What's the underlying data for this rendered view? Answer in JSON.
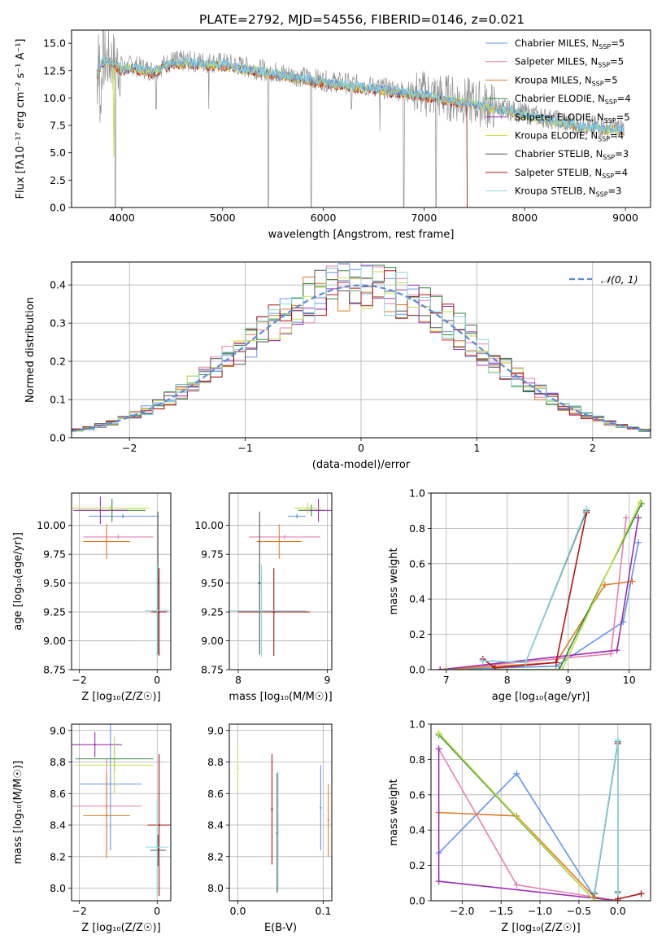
{
  "figure": {
    "title": "PLATE=2792, MJD=54556, FIBERID=0146, z=0.021"
  },
  "colors": {
    "Chabrier MILES": "#6495ed",
    "Salpeter MILES": "#e87fb5",
    "Kroupa MILES": "#e07b27",
    "Chabrier ELODIE": "#2f8c3a",
    "Salpeter ELODIE": "#9b30b5",
    "Kroupa ELODIE": "#c6e04a",
    "Chabrier STELIB": "#555555",
    "Salpeter STELIB": "#b01515",
    "Kroupa STELIB": "#86d9e0",
    "data": "#909090",
    "normal": "#5b8bd9"
  },
  "chart_data": [
    {
      "id": "spectrum",
      "type": "line",
      "title": "PLATE=2792, MJD=54556, FIBERID=0146, z=0.021",
      "xlabel": "wavelength [Angstrom, rest frame]",
      "ylabel": "Flux [fλ10⁻¹⁷ erg cm⁻² s⁻¹ A⁻¹]",
      "xlim": [
        3500,
        9250
      ],
      "ylim": [
        0,
        16.2
      ],
      "xticks": [
        "4000",
        "5000",
        "6000",
        "7000",
        "8000",
        "9000"
      ],
      "yticks": [
        "0.0",
        "2.5",
        "5.0",
        "7.5",
        "10.0",
        "12.5",
        "15.0"
      ],
      "legend_position": "top-right",
      "legend": [
        {
          "name": "Chabrier MILES",
          "nssp": "5"
        },
        {
          "name": "Salpeter MILES",
          "nssp": "5"
        },
        {
          "name": "Kroupa MILES",
          "nssp": "5"
        },
        {
          "name": "Chabrier ELODIE",
          "nssp": "4"
        },
        {
          "name": "Salpeter ELODIE",
          "nssp": "5"
        },
        {
          "name": "Kroupa ELODIE",
          "nssp": "4"
        },
        {
          "name": "Chabrier STELIB",
          "nssp": "3"
        },
        {
          "name": "Salpeter STELIB",
          "nssp": "4"
        },
        {
          "name": "Kroupa STELIB",
          "nssp": "3"
        }
      ],
      "continuum_x": [
        3750,
        3800,
        3900,
        4000,
        4100,
        4300,
        4500,
        5000,
        5500,
        6000,
        6500,
        7000,
        7500,
        8000,
        8500,
        9000
      ],
      "continuum_y": [
        12.3,
        13.5,
        13.4,
        12.7,
        13.0,
        12.5,
        13.4,
        13.2,
        12.4,
        11.6,
        11.0,
        10.4,
        9.6,
        8.6,
        7.6,
        7.2
      ],
      "dips": [
        [
          3760,
          0
        ],
        [
          3934,
          0
        ],
        [
          4340,
          9
        ],
        [
          4861,
          9
        ],
        [
          5455,
          0
        ],
        [
          5880,
          0
        ],
        [
          6280,
          9
        ],
        [
          6563,
          7
        ],
        [
          6800,
          0
        ],
        [
          7120,
          0
        ]
      ]
    },
    {
      "id": "residuals",
      "type": "bar",
      "xlabel": "(data-model)/error",
      "ylabel": "Normed distribution",
      "xlim": [
        -2.5,
        2.5
      ],
      "ylim": [
        0,
        0.46
      ],
      "xticks": [
        "−2",
        "−1",
        "0",
        "1",
        "2"
      ],
      "yticks": [
        "0.0",
        "0.1",
        "0.2",
        "0.3",
        "0.4"
      ],
      "grid": true,
      "legend_position": "top-right",
      "legend": [
        {
          "name": "𝒩(0, 1)"
        }
      ],
      "bin_width": 0.1,
      "bin_start": -2.5,
      "n_bins": 50
    },
    {
      "id": "age-vs-z",
      "type": "scatter",
      "xlabel": "Z [log₁₀(Z/Z☉)]",
      "ylabel": "age  [log₁₀(age/yr)]",
      "xlim": [
        -2.2,
        0.35
      ],
      "ylim": [
        8.75,
        10.28
      ],
      "xticks": [
        "−2",
        "0"
      ],
      "yticks": [
        "8.75",
        "9.00",
        "9.25",
        "9.50",
        "9.75",
        "10.00"
      ],
      "grid": true,
      "points": [
        {
          "series": "Chabrier MILES",
          "x": -0.88,
          "y": 10.08,
          "xerr": 0.88,
          "yerr": 0.02
        },
        {
          "series": "Salpeter MILES",
          "x": -1.0,
          "y": 9.9,
          "xerr": 0.9,
          "yerr": 0.02
        },
        {
          "series": "Kroupa MILES",
          "x": -1.3,
          "y": 9.86,
          "xerr": 0.6,
          "yerr": 0.15
        },
        {
          "series": "Chabrier ELODIE",
          "x": -1.16,
          "y": 10.13,
          "xerr": 0.86,
          "yerr": 0.1
        },
        {
          "series": "Salpeter ELODIE",
          "x": -1.46,
          "y": 10.13,
          "xerr": 0.7,
          "yerr": 0.12
        },
        {
          "series": "Kroupa ELODIE",
          "x": -1.2,
          "y": 10.15,
          "xerr": 1.0,
          "yerr": 0.02
        },
        {
          "series": "Chabrier STELIB",
          "x": 0.02,
          "y": 9.5,
          "xerr": 0.03,
          "yerr": 0.62
        },
        {
          "series": "Salpeter STELIB",
          "x": 0.05,
          "y": 9.25,
          "xerr": 0.2,
          "yerr": 0.38
        },
        {
          "series": "Kroupa STELIB",
          "x": 0.0,
          "y": 9.26,
          "xerr": 0.3,
          "yerr": 0.4
        }
      ]
    },
    {
      "id": "age-vs-mass",
      "type": "scatter",
      "xlabel": "mass [log₁₀(M/M☉)]",
      "ylabel": "",
      "xlim": [
        7.9,
        9.05
      ],
      "ylim": [
        8.75,
        10.28
      ],
      "xticks": [
        "8",
        "9"
      ],
      "yticks": [
        "8.75",
        "9.00",
        "9.25",
        "9.50",
        "9.75",
        "10.00"
      ],
      "grid": true,
      "points": [
        {
          "series": "Chabrier MILES",
          "x": 8.66,
          "y": 10.08,
          "xerr": 0.1,
          "yerr": 0.02
        },
        {
          "series": "Salpeter MILES",
          "x": 8.52,
          "y": 9.9,
          "xerr": 0.4,
          "yerr": 0.02
        },
        {
          "series": "Kroupa MILES",
          "x": 8.46,
          "y": 9.86,
          "xerr": 0.25,
          "yerr": 0.15
        },
        {
          "series": "Chabrier ELODIE",
          "x": 8.82,
          "y": 10.13,
          "xerr": 0.15,
          "yerr": 0.05
        },
        {
          "series": "Salpeter ELODIE",
          "x": 8.9,
          "y": 10.13,
          "xerr": 0.15,
          "yerr": 0.1
        },
        {
          "series": "Kroupa ELODIE",
          "x": 8.78,
          "y": 10.15,
          "xerr": 0.15,
          "yerr": 0.05
        },
        {
          "series": "Chabrier STELIB",
          "x": 8.24,
          "y": 9.5,
          "xerr": 0.02,
          "yerr": 0.62
        },
        {
          "series": "Salpeter STELIB",
          "x": 8.4,
          "y": 9.25,
          "xerr": 0.4,
          "yerr": 0.38
        },
        {
          "series": "Kroupa STELIB",
          "x": 8.26,
          "y": 9.26,
          "xerr": 0.5,
          "yerr": 0.4
        }
      ]
    },
    {
      "id": "weight-vs-age",
      "type": "line",
      "xlabel": "age  [log₁₀(age/yr)]",
      "ylabel": "mass weight",
      "xlim": [
        6.75,
        10.35
      ],
      "ylim": [
        0,
        1.0
      ],
      "xticks": [
        "7",
        "8",
        "9",
        "10"
      ],
      "yticks": [
        "0.0",
        "0.2",
        "0.4",
        "0.6",
        "0.8",
        "1.0"
      ],
      "grid": true,
      "series": [
        {
          "name": "Chabrier MILES",
          "x": [
            6.9,
            8.8,
            9.9,
            10.15
          ],
          "y": [
            0.0,
            0.02,
            0.27,
            0.72
          ]
        },
        {
          "name": "Salpeter MILES",
          "x": [
            6.9,
            9.7,
            9.95
          ],
          "y": [
            0.0,
            0.09,
            0.86
          ]
        },
        {
          "name": "Kroupa MILES",
          "x": [
            6.9,
            8.8,
            9.6,
            10.05
          ],
          "y": [
            0.0,
            0.04,
            0.48,
            0.5
          ]
        },
        {
          "name": "Chabrier ELODIE",
          "x": [
            7.0,
            8.85,
            10.2
          ],
          "y": [
            0.0,
            0.0,
            0.94
          ]
        },
        {
          "name": "Salpeter ELODIE",
          "x": [
            6.9,
            9.8,
            10.15
          ],
          "y": [
            0.0,
            0.11,
            0.86
          ]
        },
        {
          "name": "Kroupa ELODIE",
          "x": [
            7.0,
            8.9,
            10.18
          ],
          "y": [
            0.0,
            0.0,
            0.95
          ]
        },
        {
          "name": "Chabrier STELIB",
          "x": [
            7.6,
            8.3,
            9.3
          ],
          "y": [
            0.05,
            0.04,
            0.9
          ]
        },
        {
          "name": "Salpeter STELIB",
          "x": [
            7.6,
            7.8,
            8.8,
            9.3
          ],
          "y": [
            0.06,
            0.01,
            0.04,
            0.89
          ]
        },
        {
          "name": "Kroupa STELIB",
          "x": [
            7.6,
            8.3,
            9.3
          ],
          "y": [
            0.05,
            0.04,
            0.91
          ]
        }
      ]
    },
    {
      "id": "mass-vs-z",
      "type": "scatter",
      "xlabel": "Z [log₁₀(Z/Z☉)]",
      "ylabel": "mass [log₁₀(M/M☉)]",
      "xlim": [
        -2.2,
        0.35
      ],
      "ylim": [
        7.92,
        9.04
      ],
      "xticks": [
        "−2",
        "0"
      ],
      "yticks": [
        "8.0",
        "8.2",
        "8.4",
        "8.6",
        "8.8",
        "9.0"
      ],
      "grid": true,
      "points": [
        {
          "series": "Chabrier MILES",
          "x": -1.2,
          "y": 8.66,
          "xerr": 0.8,
          "yerr": 0.42
        },
        {
          "series": "Salpeter MILES",
          "x": -1.3,
          "y": 8.52,
          "xerr": 0.9,
          "yerr": 0.3
        },
        {
          "series": "Kroupa MILES",
          "x": -1.3,
          "y": 8.46,
          "xerr": 0.6,
          "yerr": 0.27
        },
        {
          "series": "Chabrier ELODIE",
          "x": -1.1,
          "y": 8.82,
          "xerr": 1.0,
          "yerr": 0.08
        },
        {
          "series": "Salpeter ELODIE",
          "x": -1.6,
          "y": 8.91,
          "xerr": 0.7,
          "yerr": 0.08
        },
        {
          "series": "Kroupa ELODIE",
          "x": -1.1,
          "y": 8.78,
          "xerr": 1.0,
          "yerr": 0.18
        },
        {
          "series": "Chabrier STELIB",
          "x": 0.02,
          "y": 8.24,
          "xerr": 0.2,
          "yerr": 0.1
        },
        {
          "series": "Salpeter STELIB",
          "x": 0.05,
          "y": 8.4,
          "xerr": 0.3,
          "yerr": 0.45
        },
        {
          "series": "Kroupa STELIB",
          "x": 0.0,
          "y": 8.26,
          "xerr": 0.3,
          "yerr": 0.3
        }
      ]
    },
    {
      "id": "mass-vs-ebv",
      "type": "scatter",
      "xlabel": "E(B-V)",
      "ylabel": "",
      "xlim": [
        -0.01,
        0.11
      ],
      "ylim": [
        7.92,
        9.04
      ],
      "xticks": [
        "0.0",
        "0.1"
      ],
      "yticks": [
        "8.0",
        "8.2",
        "8.4",
        "8.6",
        "8.8",
        "9.0"
      ],
      "grid": true,
      "points": [
        {
          "series": "Chabrier MILES",
          "x": 0.097,
          "y": 8.51,
          "yerr": 0.27
        },
        {
          "series": "Kroupa MILES",
          "x": 0.106,
          "y": 8.43,
          "yerr": 0.23
        },
        {
          "series": "Kroupa ELODIE",
          "x": 0.0,
          "y": 8.76,
          "yerr": 0.15
        },
        {
          "series": "Salpeter STELIB",
          "x": 0.04,
          "y": 8.5,
          "yerr": 0.35
        },
        {
          "series": "Chabrier STELIB",
          "x": 0.046,
          "y": 8.35,
          "yerr": 0.38
        },
        {
          "series": "Kroupa STELIB",
          "x": 0.047,
          "y": 8.36,
          "yerr": 0.38
        }
      ]
    },
    {
      "id": "weight-vs-z",
      "type": "line",
      "xlabel": "Z [log₁₀(Z/Z☉)]",
      "ylabel": "mass weight",
      "xlim": [
        -2.4,
        0.42
      ],
      "ylim": [
        0,
        1.0
      ],
      "xticks": [
        "−2.0",
        "−1.5",
        "−1.0",
        "−0.5",
        "0.0"
      ],
      "yticks": [
        "0.0",
        "0.2",
        "0.4",
        "0.6",
        "0.8",
        "1.0"
      ],
      "grid": true,
      "series": [
        {
          "name": "Chabrier MILES",
          "x": [
            -2.3,
            -1.3,
            -0.3,
            0.0
          ],
          "y": [
            0.27,
            0.72,
            0.02,
            0.0
          ]
        },
        {
          "name": "Salpeter MILES",
          "x": [
            -2.3,
            -1.3,
            0.0
          ],
          "y": [
            0.86,
            0.09,
            0.0
          ]
        },
        {
          "name": "Kroupa MILES",
          "x": [
            -2.3,
            -1.3,
            -0.3,
            0.0
          ],
          "y": [
            0.5,
            0.48,
            0.02,
            0.0
          ]
        },
        {
          "name": "Chabrier ELODIE",
          "x": [
            -2.3,
            -0.3,
            0.0
          ],
          "y": [
            0.94,
            0.0,
            0.0
          ]
        },
        {
          "name": "Salpeter ELODIE",
          "x": [
            -2.3,
            -2.3,
            0.0
          ],
          "y": [
            0.86,
            0.11,
            0.0
          ]
        },
        {
          "name": "Kroupa ELODIE",
          "x": [
            -2.3,
            -0.3,
            0.0
          ],
          "y": [
            0.95,
            0.0,
            0.0
          ]
        },
        {
          "name": "Chabrier STELIB",
          "x": [
            0.0,
            0.0,
            -0.3
          ],
          "y": [
            0.05,
            0.9,
            0.04
          ]
        },
        {
          "name": "Salpeter STELIB",
          "x": [
            0.0,
            0.0,
            0.3
          ],
          "y": [
            0.89,
            0.01,
            0.04
          ]
        },
        {
          "name": "Kroupa STELIB",
          "x": [
            0.0,
            0.0,
            -0.3
          ],
          "y": [
            0.04,
            0.91,
            0.05
          ]
        }
      ]
    }
  ]
}
